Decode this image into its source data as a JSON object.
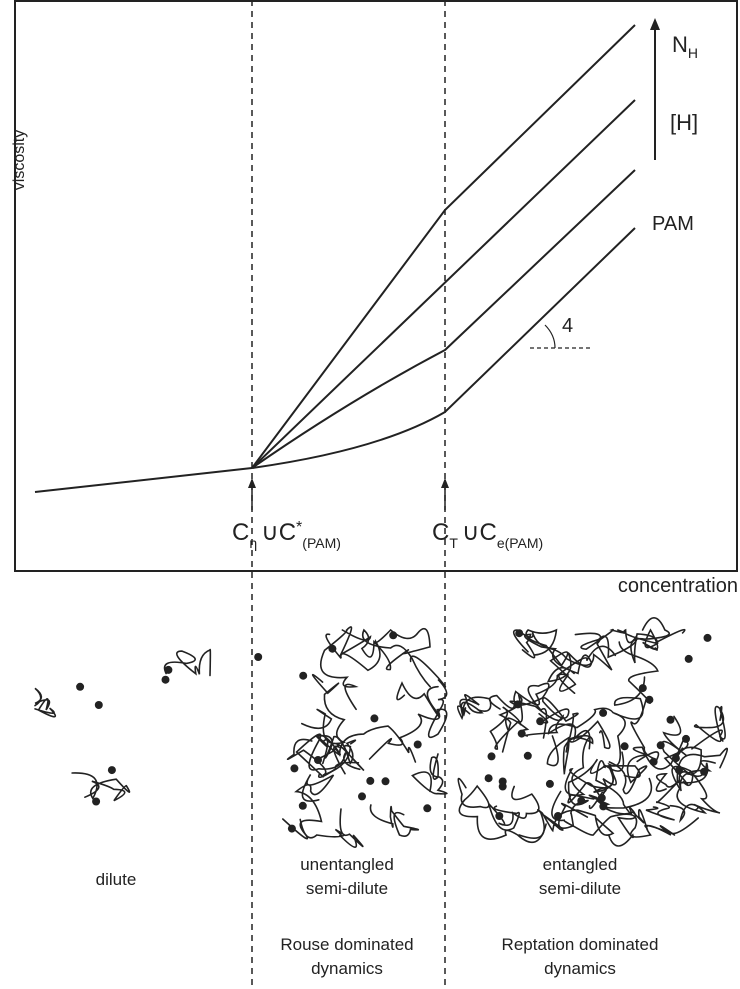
{
  "axes": {
    "y_label": "viscosity",
    "x_label": "concentration"
  },
  "curve_labels": {
    "top": "N",
    "top_sub": "H",
    "middle": "[H]",
    "bottom": "PAM",
    "slope": "4"
  },
  "markers": [
    {
      "c1": "C",
      "sub1": "η",
      "mid": "∪C",
      "sup": "*",
      "sub2": "(PAM)"
    },
    {
      "c1": "C",
      "sub1": "T",
      "mid": "∪C",
      "sub2": "e(PAM)"
    }
  ],
  "regimes": [
    {
      "state": [
        "dilute"
      ]
    },
    {
      "state": [
        "unentangled",
        "semi-dilute"
      ],
      "dynamics": [
        "Rouse dominated",
        "dynamics"
      ]
    },
    {
      "state": [
        "entangled",
        "semi-dilute"
      ],
      "dynamics": [
        "Reptation dominated",
        "dynamics"
      ]
    }
  ]
}
